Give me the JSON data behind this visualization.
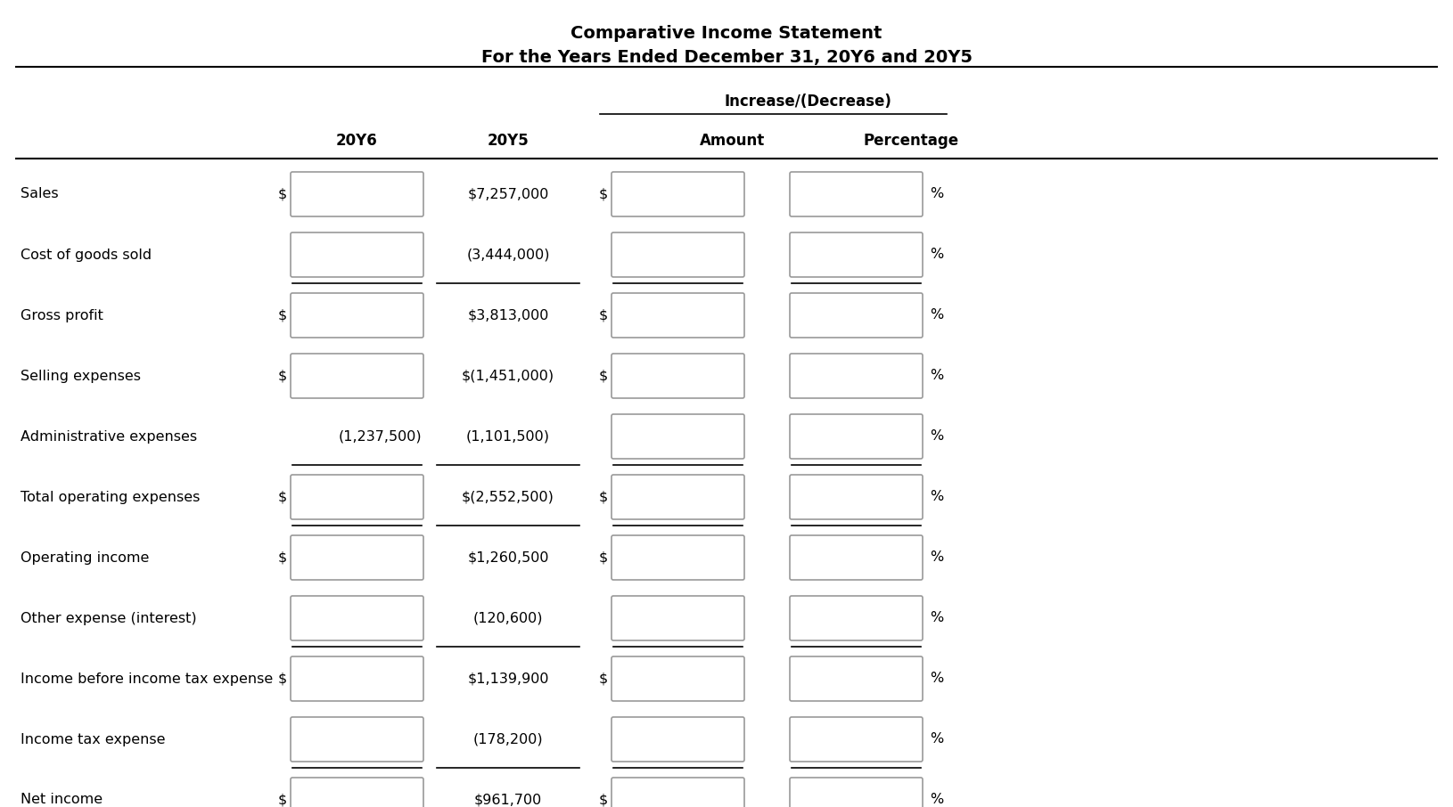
{
  "title_line1": "Comparative Income Statement",
  "title_line2": "For the Years Ended December 31, 20Y6 and 20Y5",
  "col_headers": [
    "20Y6",
    "20Y5",
    "Amount",
    "Percentage"
  ],
  "increase_decrease_label": "Increase/(Decrease)",
  "rows": [
    {
      "label": "Sales",
      "20y6_value": "",
      "20y5_value": "$7,257,000",
      "has_dollar_20y6": true,
      "has_dollar_amount": true,
      "show_box_20y6": true,
      "bottom_border": false,
      "double_bottom": false
    },
    {
      "label": "Cost of goods sold",
      "20y6_value": "",
      "20y5_value": "(3,444,000)",
      "has_dollar_20y6": false,
      "has_dollar_amount": false,
      "show_box_20y6": true,
      "bottom_border": true,
      "double_bottom": false
    },
    {
      "label": "Gross profit",
      "20y6_value": "",
      "20y5_value": "$3,813,000",
      "has_dollar_20y6": true,
      "has_dollar_amount": true,
      "show_box_20y6": true,
      "bottom_border": false,
      "double_bottom": false
    },
    {
      "label": "Selling expenses",
      "20y6_value": "",
      "20y5_value": "$(1,451,000)",
      "has_dollar_20y6": true,
      "has_dollar_amount": true,
      "show_box_20y6": true,
      "bottom_border": false,
      "double_bottom": false
    },
    {
      "label": "Administrative expenses",
      "20y6_value": "(1,237,500)",
      "20y5_value": "(1,101,500)",
      "has_dollar_20y6": false,
      "has_dollar_amount": false,
      "show_box_20y6": false,
      "bottom_border": true,
      "double_bottom": false
    },
    {
      "label": "Total operating expenses",
      "20y6_value": "",
      "20y5_value": "$(2,552,500)",
      "has_dollar_20y6": true,
      "has_dollar_amount": true,
      "show_box_20y6": true,
      "bottom_border": true,
      "double_bottom": false
    },
    {
      "label": "Operating income",
      "20y6_value": "",
      "20y5_value": "$1,260,500",
      "has_dollar_20y6": true,
      "has_dollar_amount": true,
      "show_box_20y6": true,
      "bottom_border": false,
      "double_bottom": false
    },
    {
      "label": "Other expense (interest)",
      "20y6_value": "",
      "20y5_value": "(120,600)",
      "has_dollar_20y6": false,
      "has_dollar_amount": false,
      "show_box_20y6": true,
      "bottom_border": true,
      "double_bottom": false
    },
    {
      "label": "Income before income tax expense",
      "20y6_value": "",
      "20y5_value": "$1,139,900",
      "has_dollar_20y6": true,
      "has_dollar_amount": true,
      "show_box_20y6": true,
      "bottom_border": false,
      "double_bottom": false
    },
    {
      "label": "Income tax expense",
      "20y6_value": "",
      "20y5_value": "(178,200)",
      "has_dollar_20y6": false,
      "has_dollar_amount": false,
      "show_box_20y6": true,
      "bottom_border": true,
      "double_bottom": false
    },
    {
      "label": "Net income",
      "20y6_value": "",
      "20y5_value": "$961,700",
      "has_dollar_20y6": true,
      "has_dollar_amount": true,
      "show_box_20y6": true,
      "bottom_border": false,
      "double_bottom": true
    }
  ],
  "bg_color": "#ffffff",
  "box_fill": "#ffffff",
  "box_edge": "#999999",
  "text_color": "#000000"
}
